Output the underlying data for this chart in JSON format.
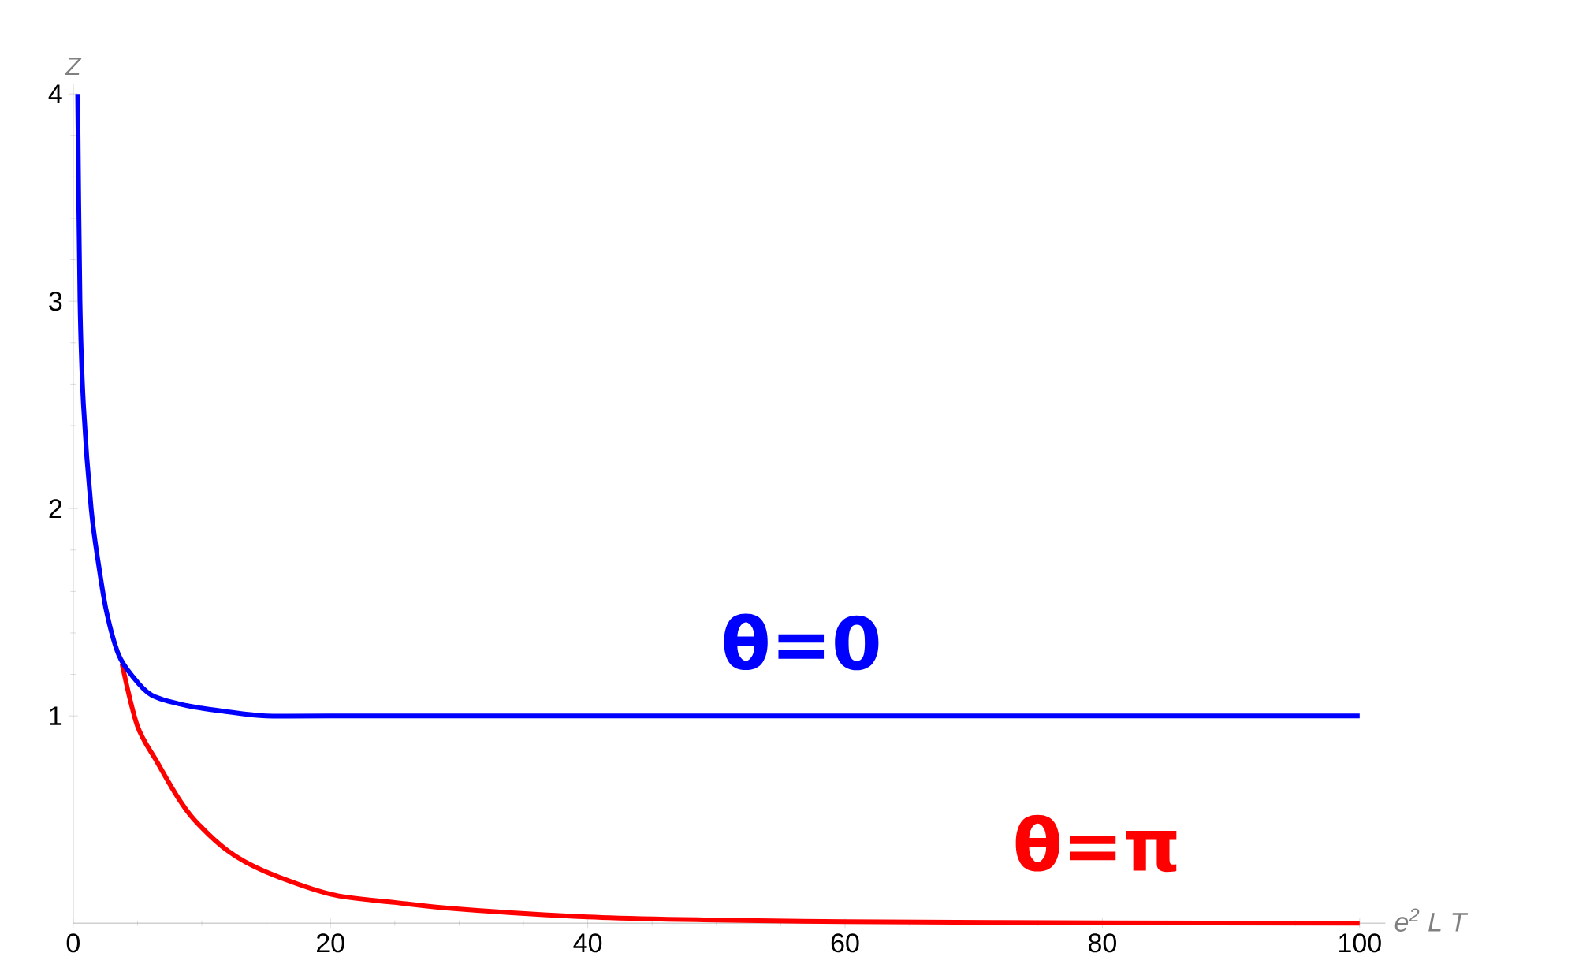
{
  "chart_data": {
    "type": "line",
    "xlabel": "e$^{2}$ L T",
    "ylabel": "Z",
    "xlim": [
      0,
      102
    ],
    "ylim": [
      0,
      4.05
    ],
    "xticks": [
      0,
      20,
      40,
      60,
      80,
      100
    ],
    "yticks": [
      1,
      2,
      3,
      4
    ],
    "grid": false,
    "legend": false,
    "series": [
      {
        "name": "θ=0",
        "color": "#0000ff",
        "x": [
          0.35,
          0.53,
          0.8,
          1.4,
          2.0,
          2.6,
          3.5,
          4.5,
          6.1,
          8.8,
          12,
          15,
          20,
          40,
          60,
          80,
          100
        ],
        "values": [
          4,
          3,
          2.5,
          2,
          1.72,
          1.5,
          1.3,
          1.2,
          1.1,
          1.05,
          1.02,
          1.0,
          1.0,
          1.0,
          1.0,
          1.0,
          1.0
        ]
      },
      {
        "name": "θ=π",
        "color": "#ff0000",
        "x": [
          3.8,
          5,
          6.5,
          8,
          9.4,
          12,
          14.9,
          20,
          25,
          30,
          40,
          50,
          60,
          80,
          100
        ],
        "values": [
          1.25,
          0.95,
          0.78,
          0.62,
          0.5,
          0.35,
          0.25,
          0.14,
          0.1,
          0.068,
          0.03,
          0.015,
          0.007,
          0.002,
          0
        ]
      }
    ]
  }
}
